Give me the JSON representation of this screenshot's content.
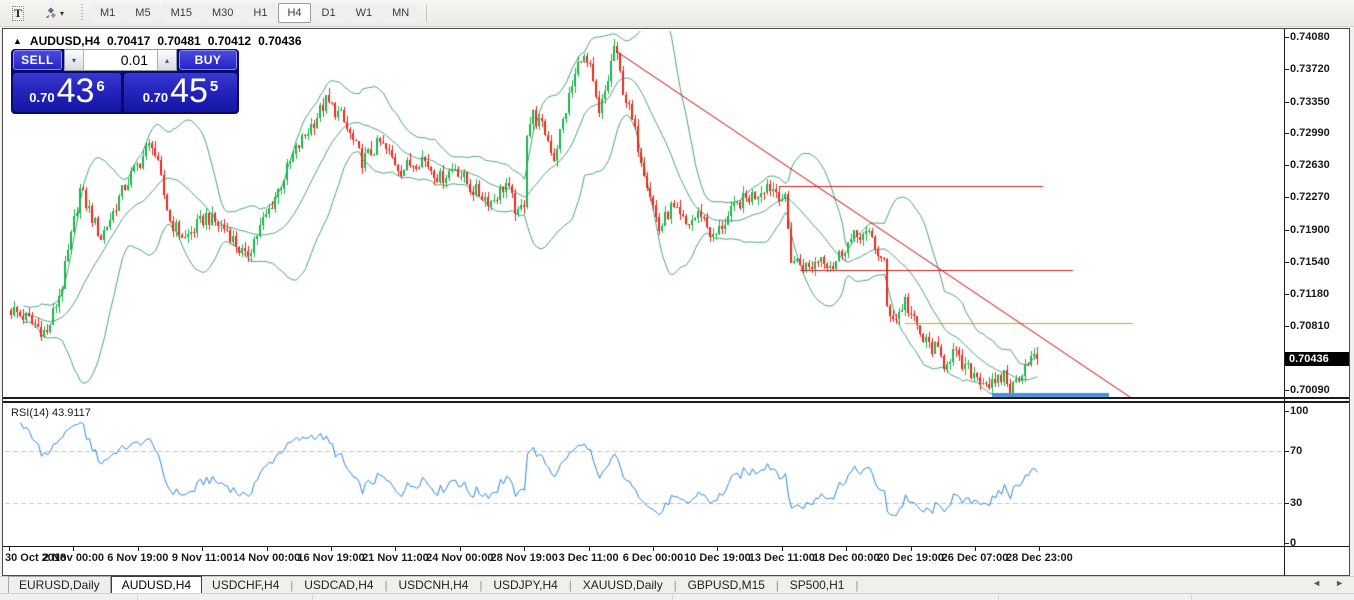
{
  "toolbar": {
    "text_tool": "T",
    "dropdown_caret": "▾",
    "timeframes": [
      "M1",
      "M5",
      "M15",
      "M30",
      "H1",
      "H4",
      "D1",
      "W1",
      "MN"
    ],
    "active_timeframe": "H4"
  },
  "chart_header": {
    "collapse_glyph": "▲",
    "symbol": "AUDUSD,H4",
    "open": "0.70417",
    "high": "0.70481",
    "low": "0.70412",
    "close": "0.70436"
  },
  "trade_panel": {
    "sell_label": "SELL",
    "buy_label": "BUY",
    "volume": "0.01",
    "volume_down_glyph": "▾",
    "volume_up_glyph": "▴",
    "sell_price": {
      "prefix": "0.70",
      "big": "43",
      "sup": "6"
    },
    "buy_price": {
      "prefix": "0.70",
      "big": "45",
      "sup": "5"
    }
  },
  "rsi_label": "RSI(14) 43.9117",
  "price_axis": {
    "ticks": [
      {
        "label": "0.74080",
        "price": 0.7408
      },
      {
        "label": "0.73720",
        "price": 0.7372
      },
      {
        "label": "0.73350",
        "price": 0.7335
      },
      {
        "label": "0.72990",
        "price": 0.7299
      },
      {
        "label": "0.72630",
        "price": 0.7263
      },
      {
        "label": "0.72270",
        "price": 0.7227
      },
      {
        "label": "0.71900",
        "price": 0.719
      },
      {
        "label": "0.71540",
        "price": 0.7154
      },
      {
        "label": "0.71180",
        "price": 0.7118
      },
      {
        "label": "0.70810",
        "price": 0.7081
      },
      {
        "label": "0.70090",
        "price": 0.7009
      }
    ],
    "current": {
      "label": "0.70436",
      "price": 0.70436
    }
  },
  "rsi_axis": [
    {
      "label": "100",
      "value": 100
    },
    {
      "label": "70",
      "value": 70
    },
    {
      "label": "30",
      "value": 30
    },
    {
      "label": "0",
      "value": 0
    }
  ],
  "time_axis": [
    "30 Oct 2018",
    "2 Nov 00:00",
    "6 Nov 19:00",
    "9 Nov 11:00",
    "14 Nov 00:00",
    "16 Nov 19:00",
    "21 Nov 11:00",
    "24 Nov 00:00",
    "28 Nov 19:00",
    "3 Dec 11:00",
    "6 Dec 00:00",
    "10 Dec 19:00",
    "13 Dec 11:00",
    "18 Dec 00:00",
    "20 Dec 19:00",
    "26 Dec 07:00",
    "28 Dec 23:00"
  ],
  "tabs": {
    "items": [
      "EURUSD,Daily",
      "AUDUSD,H4",
      "USDCHF,H4",
      "USDCAD,H4",
      "USDCNH,H4",
      "USDJPY,H4",
      "XAUUSD,Daily",
      "GBPUSD,M15",
      "SP500,H1"
    ],
    "active": "AUDUSD,H4",
    "divider": "|",
    "scroll_left": "◄",
    "scroll_right": "►"
  },
  "chart_data": {
    "type": "candlestick",
    "title": "AUDUSD,H4",
    "ohlc_current": {
      "open": 0.70417,
      "high": 0.70481,
      "low": 0.70412,
      "close": 0.70436
    },
    "price_range_visible": [
      0.69988,
      0.7417
    ],
    "bars": 343,
    "close_waypoints": [
      [
        0,
        0.71
      ],
      [
        5,
        0.709
      ],
      [
        12,
        0.7073
      ],
      [
        17,
        0.7128
      ],
      [
        23,
        0.7235
      ],
      [
        30,
        0.7181
      ],
      [
        38,
        0.724
      ],
      [
        47,
        0.729
      ],
      [
        53,
        0.72
      ],
      [
        58,
        0.718
      ],
      [
        65,
        0.7205
      ],
      [
        72,
        0.719
      ],
      [
        78,
        0.7158
      ],
      [
        87,
        0.722
      ],
      [
        95,
        0.728
      ],
      [
        105,
        0.7335
      ],
      [
        110,
        0.7318
      ],
      [
        117,
        0.7268
      ],
      [
        123,
        0.7288
      ],
      [
        130,
        0.7258
      ],
      [
        137,
        0.7272
      ],
      [
        143,
        0.7248
      ],
      [
        148,
        0.7262
      ],
      [
        153,
        0.7238
      ],
      [
        160,
        0.7222
      ],
      [
        165,
        0.7242
      ],
      [
        169,
        0.7205
      ],
      [
        171,
        0.7222
      ],
      [
        172,
        0.7302
      ],
      [
        174,
        0.732
      ],
      [
        178,
        0.73
      ],
      [
        181,
        0.7272
      ],
      [
        186,
        0.734
      ],
      [
        190,
        0.7388
      ],
      [
        193,
        0.737
      ],
      [
        196,
        0.7318
      ],
      [
        199,
        0.736
      ],
      [
        201,
        0.7398
      ],
      [
        204,
        0.735
      ],
      [
        208,
        0.73
      ],
      [
        212,
        0.7245
      ],
      [
        216,
        0.719
      ],
      [
        220,
        0.7215
      ],
      [
        225,
        0.7195
      ],
      [
        230,
        0.721
      ],
      [
        234,
        0.718
      ],
      [
        238,
        0.72
      ],
      [
        243,
        0.7222
      ],
      [
        248,
        0.723
      ],
      [
        252,
        0.7242
      ],
      [
        256,
        0.7232
      ],
      [
        258,
        0.7222
      ],
      [
        260,
        0.7158
      ],
      [
        266,
        0.7146
      ],
      [
        270,
        0.716
      ],
      [
        274,
        0.715
      ],
      [
        278,
        0.7172
      ],
      [
        283,
        0.7186
      ],
      [
        287,
        0.718
      ],
      [
        290,
        0.7155
      ],
      [
        291,
        0.715
      ],
      [
        292,
        0.7102
      ],
      [
        295,
        0.709
      ],
      [
        298,
        0.711
      ],
      [
        301,
        0.7085
      ],
      [
        304,
        0.7065
      ],
      [
        308,
        0.7055
      ],
      [
        311,
        0.704
      ],
      [
        314,
        0.7052
      ],
      [
        317,
        0.7035
      ],
      [
        321,
        0.7028
      ],
      [
        324,
        0.702
      ],
      [
        328,
        0.7012
      ],
      [
        331,
        0.7028
      ],
      [
        333,
        0.7006
      ],
      [
        336,
        0.7026
      ],
      [
        339,
        0.7044
      ],
      [
        342,
        0.70436
      ]
    ],
    "noise_amp": 0.0009,
    "wick_amp": 0.0008,
    "indicators": {
      "bollinger": {
        "period": 20,
        "deviations": 2,
        "color": "#48a377"
      },
      "rsi": {
        "period": 14,
        "current": 43.9117,
        "levels": [
          70,
          30
        ],
        "range": [
          0,
          100
        ],
        "color": "#2b87e0",
        "level_color": "#c4c4c4"
      }
    },
    "overlays": {
      "trendline": {
        "from_bar": 201.7,
        "from_price": 0.73922,
        "to_bar": 375,
        "to_price": 0.69966,
        "color": "#d40000"
      },
      "hlines": [
        {
          "price": 0.72396,
          "from_bar": 256,
          "to_bar": 344,
          "color": "#cf2020",
          "width": 1
        },
        {
          "price": 0.71446,
          "from_bar": 263,
          "to_bar": 354,
          "color": "#cf2020",
          "width": 1
        },
        {
          "price": 0.70847,
          "from_bar": 298,
          "to_bar": 374,
          "color": "#b4b414",
          "width": 1
        },
        {
          "price": 0.70033,
          "from_bar": 327,
          "to_bar": 366,
          "color": "#4a8fd8",
          "width": 4
        }
      ]
    },
    "colors": {
      "bull": "#1cb24b",
      "bear": "#e8281e",
      "background": "#ffffff",
      "axis_text": "#1a1a1a",
      "current_price_bg": "#000000",
      "current_price_fg": "#ffffff"
    }
  }
}
